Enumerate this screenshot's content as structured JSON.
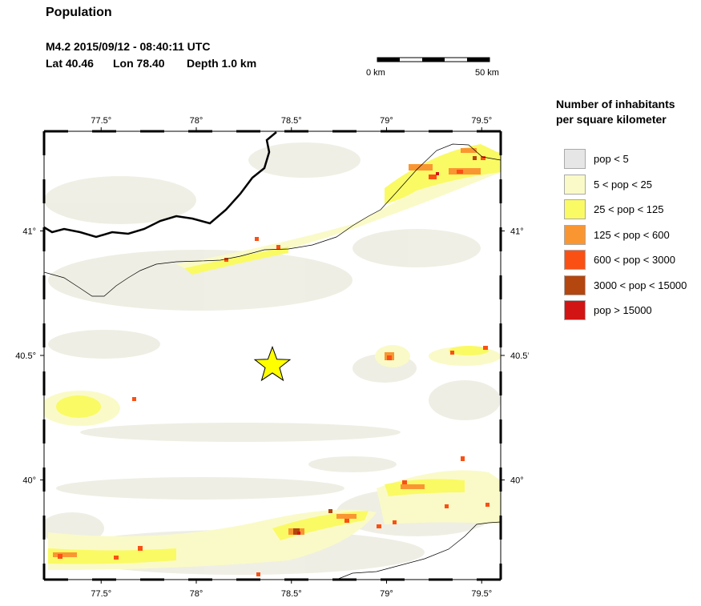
{
  "title": "Population",
  "event": {
    "header": "M4.2  2015/09/12 - 08:40:11 UTC",
    "lat": "Lat 40.46",
    "lon": "Lon  78.40",
    "depth": "Depth  1.0 km"
  },
  "scale_bar": {
    "start_label": "0 km",
    "end_label": "50 km"
  },
  "axes": {
    "x_ticks": [
      "77.5°",
      "78°",
      "78.5°",
      "79°",
      "79.5°"
    ],
    "y_ticks": [
      "41°",
      "40.5°",
      "40°"
    ]
  },
  "legend": {
    "title_line1": "Number of inhabitants",
    "title_line2": "per square kilometer",
    "items": [
      {
        "label": "pop < 5",
        "color": "#e6e6e6"
      },
      {
        "label": "5 < pop < 25",
        "color": "#fafac8"
      },
      {
        "label": "25 < pop < 125",
        "color": "#fafa64"
      },
      {
        "label": "125 < pop < 600",
        "color": "#fa9632"
      },
      {
        "label": "600 < pop < 3000",
        "color": "#fa5014"
      },
      {
        "label": "3000 < pop < 15000",
        "color": "#b4460f"
      },
      {
        "label": "pop > 15000",
        "color": "#d21414"
      }
    ]
  },
  "epicenter": {
    "lat": 40.46,
    "lon": 78.4,
    "symbol": "star-icon",
    "color": "#ffff00"
  }
}
